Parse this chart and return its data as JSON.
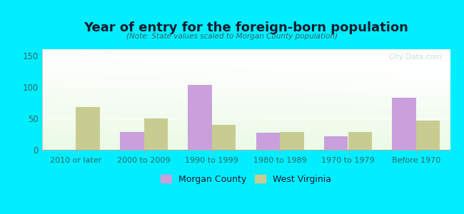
{
  "title": "Year of entry for the foreign-born population",
  "subtitle": "(Note: State values scaled to Morgan County population)",
  "categories": [
    "2010 or later",
    "2000 to 2009",
    "1990 to 1999",
    "1980 to 1989",
    "1970 to 1979",
    "Before 1970"
  ],
  "morgan_county": [
    0,
    28,
    103,
    27,
    21,
    83
  ],
  "west_virginia": [
    68,
    50,
    40,
    28,
    28,
    46
  ],
  "morgan_color": "#c9a0dc",
  "wv_color": "#c8cc90",
  "background_outer": "#00eeff",
  "ylim": [
    0,
    160
  ],
  "yticks": [
    0,
    50,
    100,
    150
  ],
  "bar_width": 0.35,
  "legend_morgan": "Morgan County",
  "legend_wv": "West Virginia",
  "watermark": "City-Data.com",
  "title_color": "#1a1a2e",
  "subtitle_color": "#336666",
  "tick_color": "#336666"
}
